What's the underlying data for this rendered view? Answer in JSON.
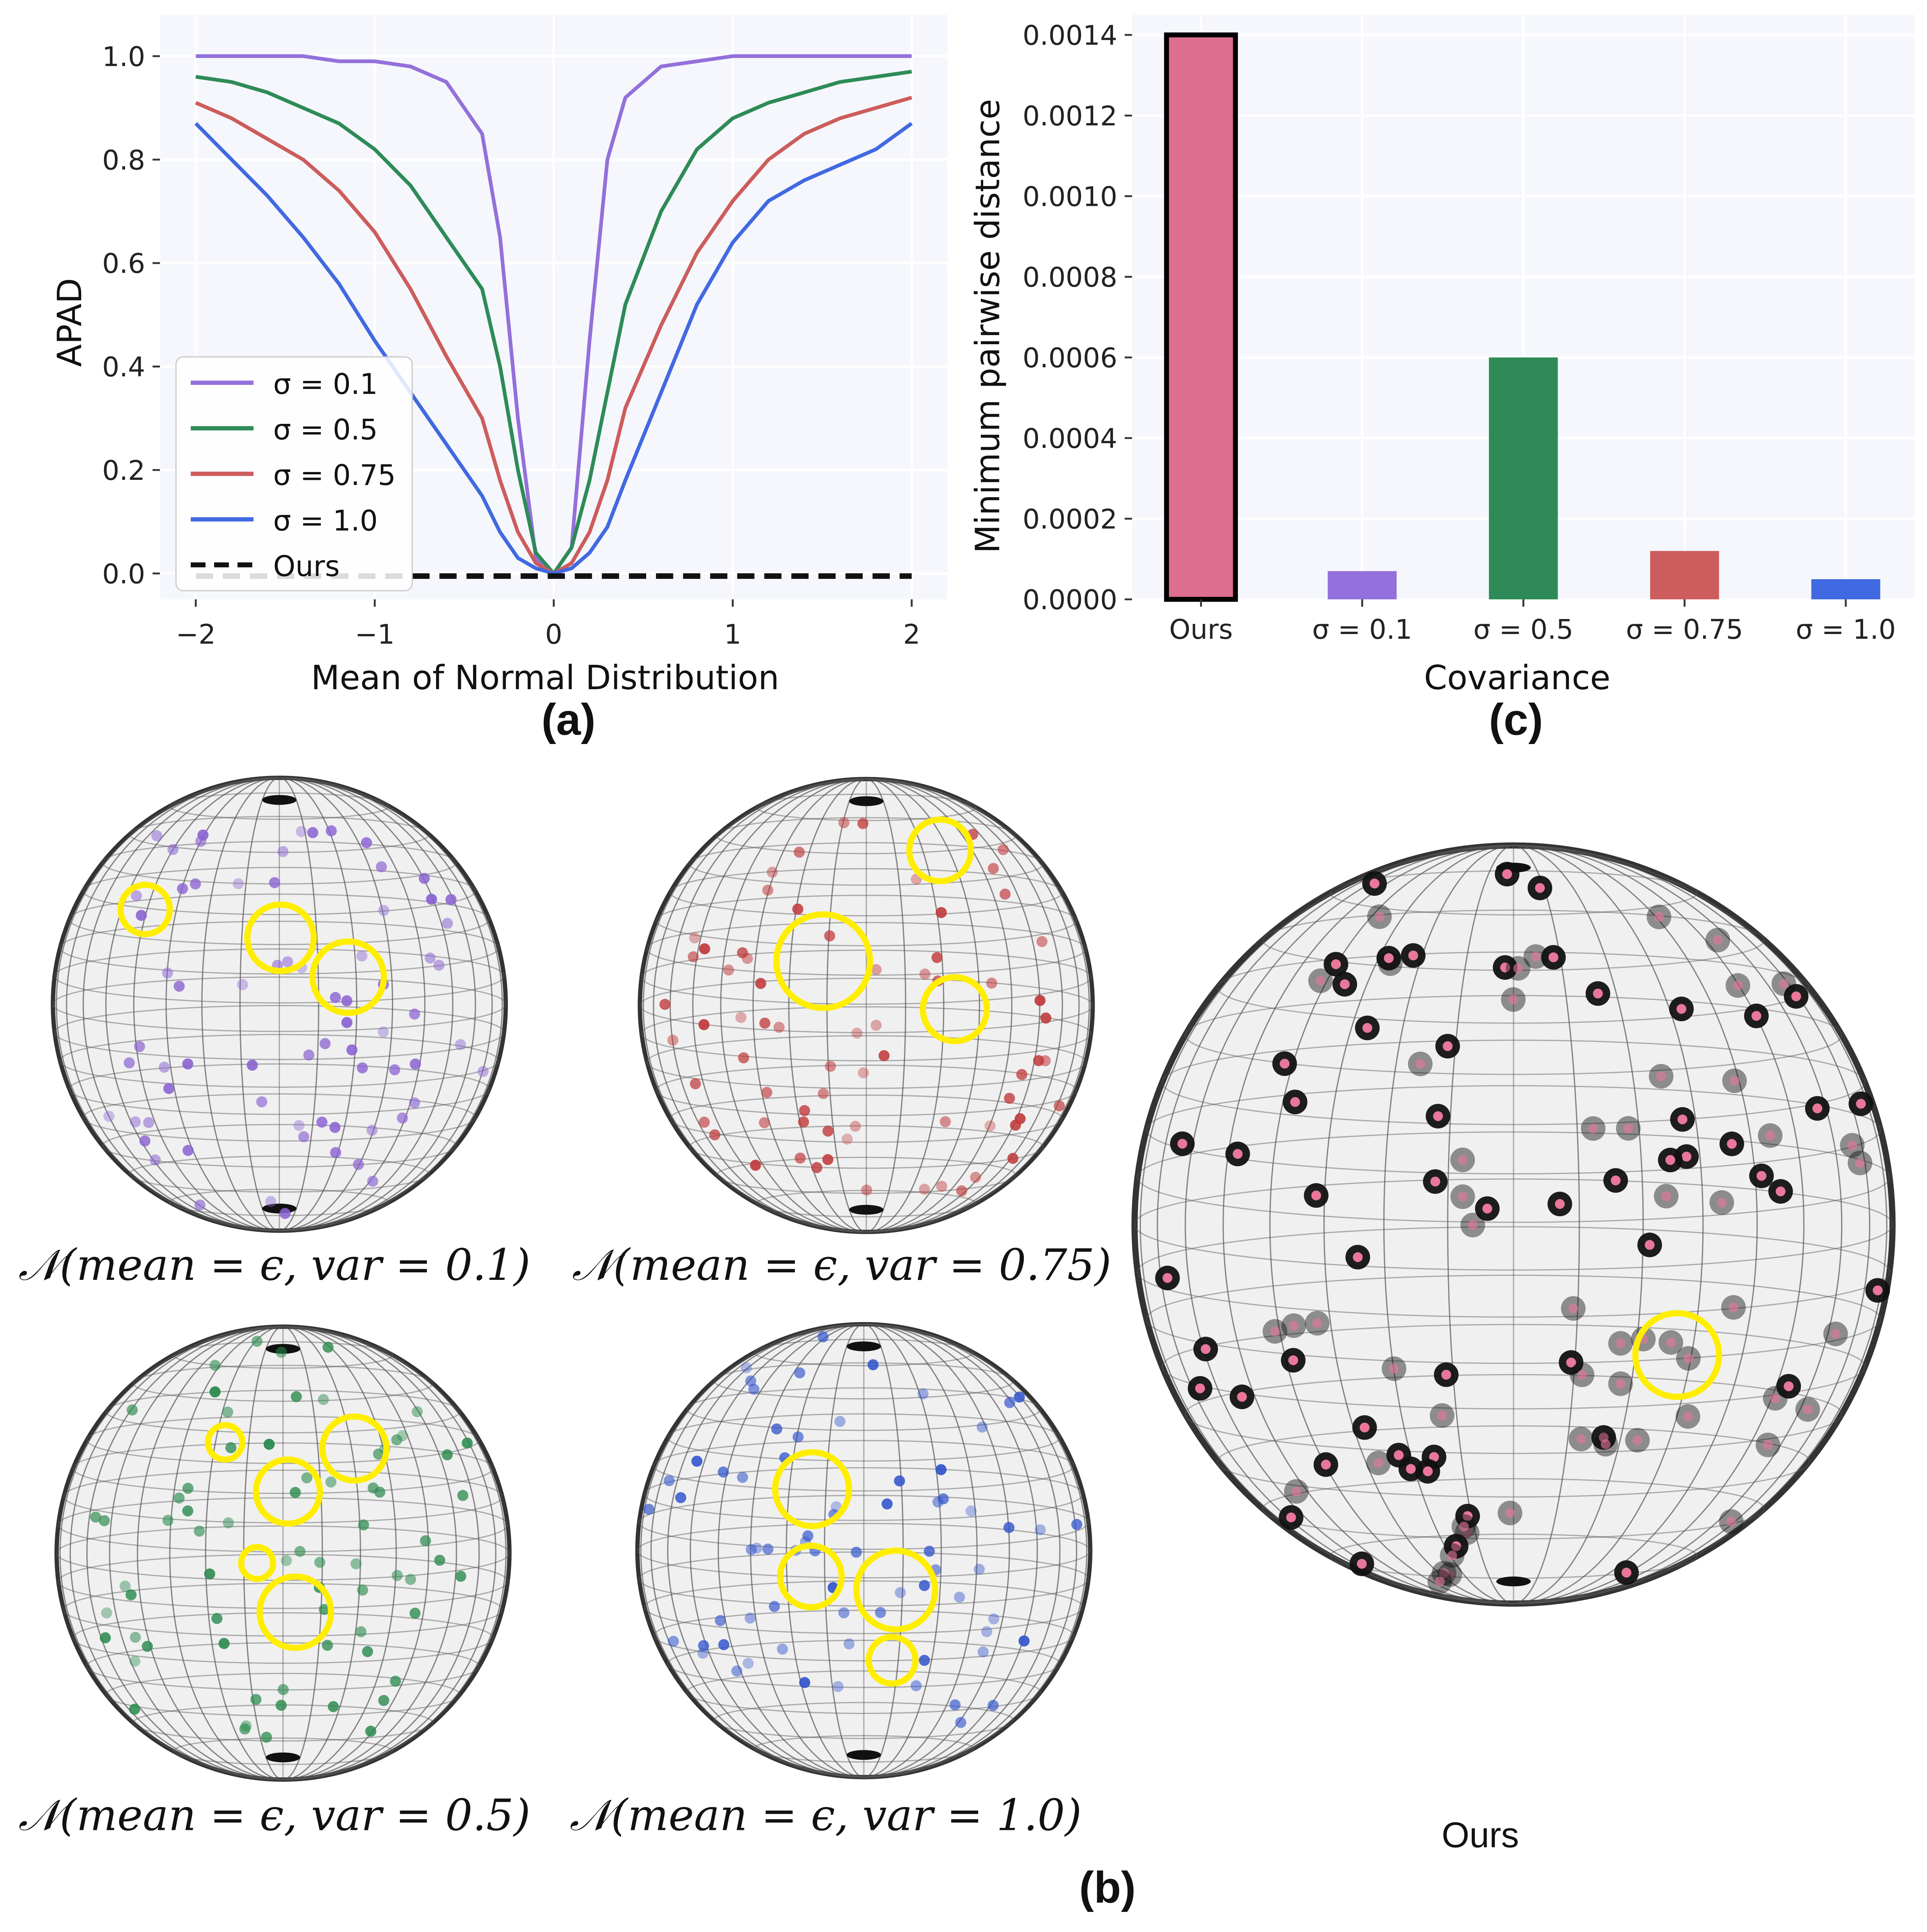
{
  "figure": {
    "panel_labels": {
      "a": "(a)",
      "b": "(b)",
      "c": "(c)"
    },
    "sphere_captions": [
      "𝒩(mean = ϵ, var = 0.1)",
      "𝒩(mean = ϵ, var = 0.75)",
      "𝒩(mean = ϵ, var = 0.5)",
      "𝒩(mean = ϵ, var = 1.0)"
    ],
    "ours_caption": "Ours",
    "sphere_colors": [
      "#8a63d2",
      "#c0393b",
      "#2b8a4e",
      "#3355cc",
      "#e8779a"
    ],
    "highlight_color": "#ffee00"
  },
  "chart_data": [
    {
      "type": "line",
      "panel": "(a)",
      "xlabel": "Mean of Normal Distribution",
      "ylabel": "APAD",
      "xlim": [
        -2.2,
        2.2
      ],
      "ylim": [
        -0.05,
        1.08
      ],
      "xticks": [
        -2,
        -1,
        0,
        1,
        2
      ],
      "xtick_labels": [
        "−2",
        "−1",
        "0",
        "1",
        "2"
      ],
      "yticks": [
        0.0,
        0.2,
        0.4,
        0.6,
        0.8,
        1.0
      ],
      "ytick_labels": [
        "0.0",
        "0.2",
        "0.4",
        "0.6",
        "0.8",
        "1.0"
      ],
      "grid": true,
      "legend_position": "lower-left",
      "x": [
        -2.0,
        -1.8,
        -1.6,
        -1.4,
        -1.2,
        -1.0,
        -0.8,
        -0.6,
        -0.4,
        -0.3,
        -0.2,
        -0.1,
        0.0,
        0.1,
        0.2,
        0.3,
        0.4,
        0.6,
        0.8,
        1.0,
        1.2,
        1.4,
        1.6,
        1.8,
        2.0
      ],
      "series": [
        {
          "name": "σ = 0.1",
          "color": "#9370db",
          "style": "solid",
          "values": [
            1.0,
            1.0,
            1.0,
            1.0,
            0.99,
            0.99,
            0.98,
            0.95,
            0.85,
            0.65,
            0.3,
            0.03,
            0.0,
            0.05,
            0.45,
            0.8,
            0.92,
            0.98,
            0.99,
            1.0,
            1.0,
            1.0,
            1.0,
            1.0,
            1.0
          ]
        },
        {
          "name": "σ = 0.5",
          "color": "#2e8b57",
          "style": "solid",
          "values": [
            0.96,
            0.95,
            0.93,
            0.9,
            0.87,
            0.82,
            0.75,
            0.65,
            0.55,
            0.4,
            0.2,
            0.04,
            0.0,
            0.05,
            0.18,
            0.35,
            0.52,
            0.7,
            0.82,
            0.88,
            0.91,
            0.93,
            0.95,
            0.96,
            0.97
          ]
        },
        {
          "name": "σ = 0.75",
          "color": "#cd5c5c",
          "style": "solid",
          "values": [
            0.91,
            0.88,
            0.84,
            0.8,
            0.74,
            0.66,
            0.55,
            0.42,
            0.3,
            0.18,
            0.08,
            0.02,
            0.0,
            0.02,
            0.08,
            0.18,
            0.32,
            0.48,
            0.62,
            0.72,
            0.8,
            0.85,
            0.88,
            0.9,
            0.92
          ]
        },
        {
          "name": "σ = 1.0",
          "color": "#4169e1",
          "style": "solid",
          "values": [
            0.87,
            0.8,
            0.73,
            0.65,
            0.56,
            0.45,
            0.35,
            0.25,
            0.15,
            0.08,
            0.03,
            0.01,
            0.0,
            0.01,
            0.04,
            0.09,
            0.18,
            0.35,
            0.52,
            0.64,
            0.72,
            0.76,
            0.79,
            0.82,
            0.87
          ]
        },
        {
          "name": "Ours",
          "color": "#111111",
          "style": "dashed",
          "values": [
            -0.005,
            -0.005,
            -0.005,
            -0.005,
            -0.005,
            -0.005,
            -0.005,
            -0.005,
            -0.005,
            -0.005,
            -0.005,
            -0.005,
            -0.005,
            -0.005,
            -0.005,
            -0.005,
            -0.005,
            -0.005,
            -0.005,
            -0.005,
            -0.005,
            -0.005,
            -0.005,
            -0.005,
            -0.005
          ]
        }
      ]
    },
    {
      "type": "bar",
      "panel": "(c)",
      "xlabel": "Covariance",
      "ylabel": "Minimum pairwise  distance",
      "categories": [
        "Ours",
        "σ = 0.1",
        "σ = 0.5",
        "σ = 0.75",
        "σ = 1.0"
      ],
      "values": [
        0.0014,
        7e-05,
        0.0006,
        0.00012,
        5e-05
      ],
      "colors": [
        "#de6e8f",
        "#9370db",
        "#2e8b57",
        "#cd5c5c",
        "#4169e1"
      ],
      "highlighted_bar": "Ours",
      "ylim": [
        0,
        0.00145
      ],
      "yticks": [
        0,
        0.0002,
        0.0004,
        0.0006,
        0.0008,
        0.001,
        0.0012,
        0.0014
      ],
      "ytick_labels": [
        "0.0000",
        "0.0002",
        "0.0004",
        "0.0006",
        "0.0008",
        "0.0010",
        "0.0012",
        "0.0014"
      ],
      "grid": true
    }
  ]
}
